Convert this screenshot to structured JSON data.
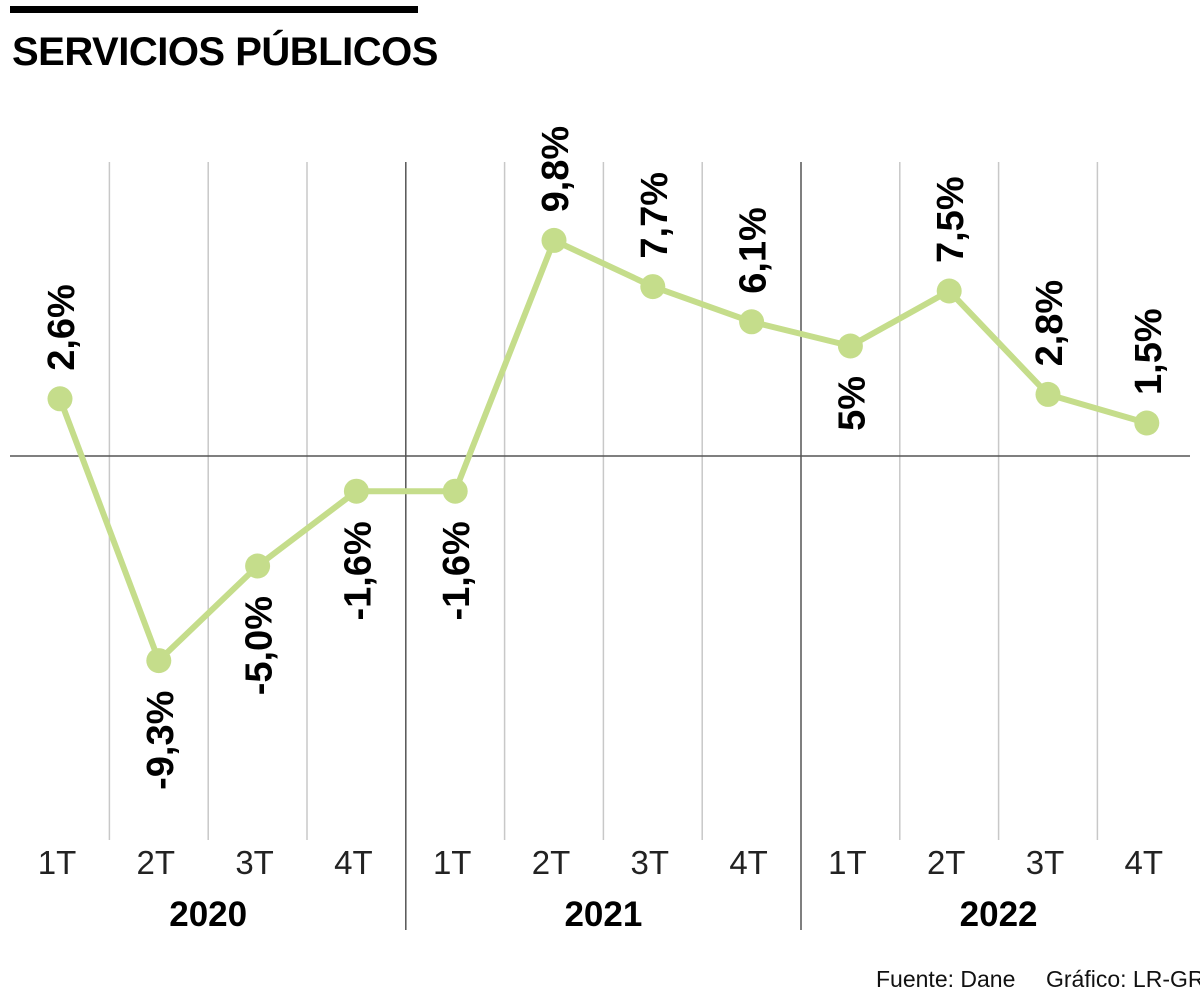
{
  "title": "SERVICIOS PÚBLICOS",
  "source": "Fuente: Dane",
  "credit": "Gráfico: LR-GR",
  "colors": {
    "line": "#c5dd8b",
    "marker": "#c5dd8b",
    "grid": "#c8c8c8",
    "separator": "#555555",
    "baseline": "#555555"
  },
  "chart_data": {
    "type": "line",
    "title": "SERVICIOS PÚBLICOS",
    "categories": [
      "1T",
      "2T",
      "3T",
      "4T",
      "1T",
      "2T",
      "3T",
      "4T",
      "1T",
      "2T",
      "3T",
      "4T"
    ],
    "groups": [
      {
        "label": "2020",
        "count": 4
      },
      {
        "label": "2021",
        "count": 4
      },
      {
        "label": "2022",
        "count": 4
      }
    ],
    "values": [
      2.6,
      -9.3,
      -5.0,
      -1.6,
      -1.6,
      9.8,
      7.7,
      6.1,
      5.0,
      7.5,
      2.8,
      1.5
    ],
    "data_labels": [
      "2,6%",
      "-9,3%",
      "-5,0%",
      "-1,6%",
      "-1,6%",
      "9,8%",
      "7,7%",
      "6,1%",
      "5%",
      "7,5%",
      "2,8%",
      "1,5%"
    ],
    "ylim": [
      -14,
      14
    ],
    "grid": true,
    "legend": "none"
  }
}
